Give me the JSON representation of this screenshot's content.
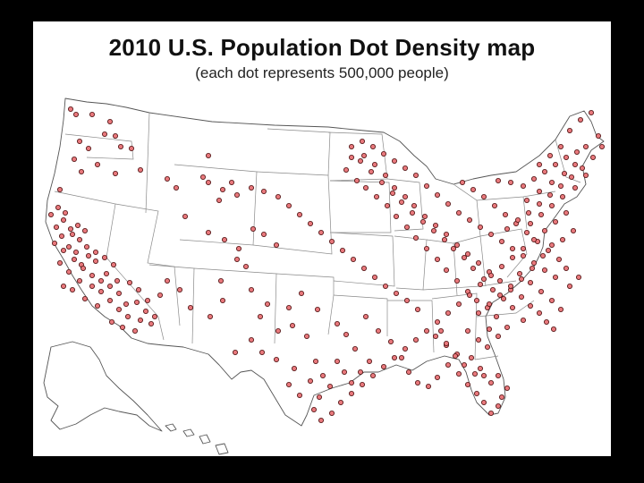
{
  "title": "2010 U.S. Population Dot Density map",
  "subtitle": "(each dot represents 500,000 people)",
  "colors": {
    "dot_fill": "#e8787c",
    "dot_stroke": "#4a0d0d",
    "background": "#ffffff",
    "frame": "#000000"
  },
  "dot_value_people": 500000
}
